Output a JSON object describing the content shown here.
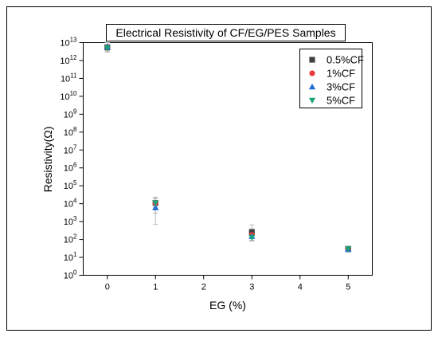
{
  "chart_data": {
    "type": "scatter",
    "title": "Electrical Resistivity of CF/EG/PES Samples",
    "xlabel": "EG (%)",
    "ylabel": "Resistivity(Ω)",
    "xlim": [
      -0.5,
      5.5
    ],
    "ylim_exponent": [
      0,
      13
    ],
    "log_y": true,
    "x_ticks": [
      "0",
      "1",
      "2",
      "3",
      "4",
      "5"
    ],
    "y_ticks": [
      "10^0",
      "10^1",
      "10^2",
      "10^3",
      "10^4",
      "10^5",
      "10^6",
      "10^7",
      "10^8",
      "10^9",
      "10^10",
      "10^11",
      "10^12",
      "10^13"
    ],
    "legend_position": "top-right",
    "grid": false,
    "series": [
      {
        "name": "0.5%CF",
        "color": "#404040",
        "marker": "square",
        "x": [
          0,
          1,
          3,
          5
        ],
        "y": [
          5500000000000.0,
          11000,
          260,
          30
        ],
        "err_low": [
          2500000000000.0,
          6000,
          170,
          10
        ],
        "err_high": [
          6000000000000.0,
          12000,
          400,
          8
        ]
      },
      {
        "name": "1%CF",
        "color": "#e83a3a",
        "marker": "circle",
        "x": [
          0,
          1,
          3,
          5
        ],
        "y": [
          5500000000000.0,
          11000,
          180,
          30
        ],
        "err_low": [
          2000000000000.0,
          10300,
          90,
          8
        ],
        "err_high": [
          5000000000000.0,
          9000,
          200,
          8
        ]
      },
      {
        "name": "3%CF",
        "color": "#1f6fd1",
        "marker": "triangle-up",
        "x": [
          0,
          1,
          3,
          5
        ],
        "y": [
          6000000000000.0,
          6000,
          150,
          28
        ],
        "err_low": [
          2500000000000.0,
          3000,
          60,
          8
        ],
        "err_high": [
          5000000000000.0,
          6000,
          150,
          7
        ]
      },
      {
        "name": "5%CF",
        "color": "#1aa37a",
        "marker": "triangle-down",
        "x": [
          0,
          1,
          3,
          5
        ],
        "y": [
          5000000000000.0,
          11000,
          130,
          30
        ],
        "err_low": [
          2000000000000.0,
          5000,
          50,
          8
        ],
        "err_high": [
          5000000000000.0,
          8000,
          100,
          6
        ]
      }
    ]
  }
}
